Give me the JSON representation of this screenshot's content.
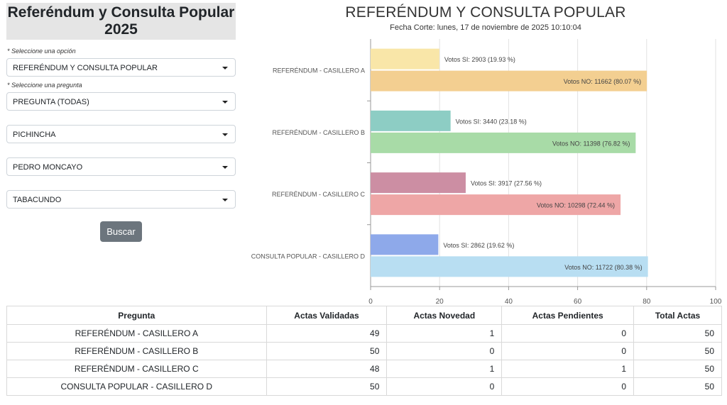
{
  "sidebar": {
    "title_line1": "Referéndum y Consulta Popular",
    "title_line2": "2025",
    "hint_option": "* Seleccione una opción",
    "select_option": "REFERÉNDUM Y CONSULTA POPULAR",
    "hint_question": "* Seleccione una pregunta",
    "select_question": "PREGUNTA (TODAS)",
    "select_province": "PICHINCHA",
    "select_canton": "PEDRO MONCAYO",
    "select_parish": "TABACUNDO",
    "search_button": "Buscar"
  },
  "chart_data": {
    "type": "bar",
    "orientation": "horizontal",
    "title": "REFERÉNDUM Y CONSULTA POPULAR",
    "subtitle": "Fecha Corte: lunes, 17 de noviembre de 2025 10:10:04",
    "xlim": [
      0,
      100
    ],
    "x_ticks": [
      "0",
      "20",
      "40",
      "60",
      "80",
      "100"
    ],
    "grid": true,
    "categories": [
      {
        "label": "REFERÉNDUM - CASILLERO A",
        "bars": [
          {
            "label": "Votos SI: 2903 (19.93 %)",
            "value": 19.93,
            "color": "#f9e6a8"
          },
          {
            "label": "Votos NO: 11662 (80.07 %)",
            "value": 80.07,
            "color": "#f3cf91"
          }
        ]
      },
      {
        "label": "REFERÉNDUM - CASILLERO B",
        "bars": [
          {
            "label": "Votos SI: 3440 (23.18 %)",
            "value": 23.18,
            "color": "#8dcdc4"
          },
          {
            "label": "Votos NO: 11398 (76.82 %)",
            "value": 76.82,
            "color": "#a8dba7"
          }
        ]
      },
      {
        "label": "REFERÉNDUM - CASILLERO C",
        "bars": [
          {
            "label": "Votos SI: 3917 (27.56 %)",
            "value": 27.56,
            "color": "#cc8ea3"
          },
          {
            "label": "Votos NO: 10298 (72.44 %)",
            "value": 72.44,
            "color": "#eea6a6"
          }
        ]
      },
      {
        "label": "CONSULTA POPULAR - CASILLERO D",
        "bars": [
          {
            "label": "Votos SI: 2862 (19.62 %)",
            "value": 19.62,
            "color": "#8ea9ea"
          },
          {
            "label": "Votos NO: 11722 (80.38 %)",
            "value": 80.38,
            "color": "#b8def2"
          }
        ]
      }
    ]
  },
  "table": {
    "headers": [
      "Pregunta",
      "Actas Validadas",
      "Actas Novedad",
      "Actas Pendientes",
      "Total Actas"
    ],
    "rows": [
      [
        "REFERÉNDUM - CASILLERO A",
        "49",
        "1",
        "0",
        "50"
      ],
      [
        "REFERÉNDUM - CASILLERO B",
        "50",
        "0",
        "0",
        "50"
      ],
      [
        "REFERÉNDUM - CASILLERO C",
        "48",
        "1",
        "1",
        "50"
      ],
      [
        "CONSULTA POPULAR - CASILLERO D",
        "50",
        "0",
        "0",
        "50"
      ]
    ]
  }
}
